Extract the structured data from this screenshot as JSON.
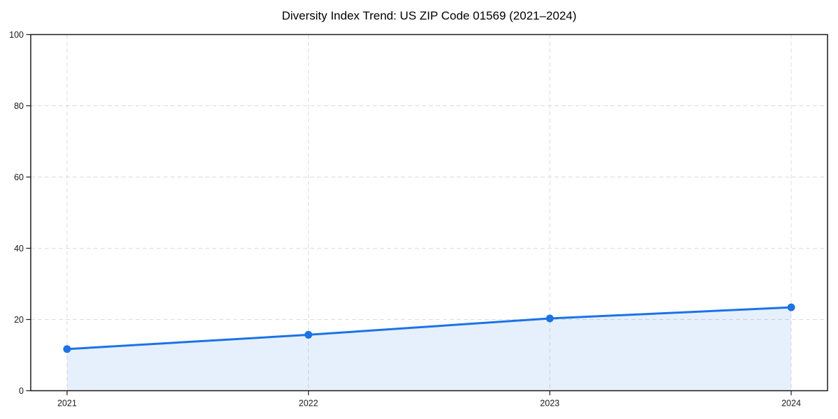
{
  "chart_data": {
    "type": "area",
    "title": "Diversity Index Trend: US ZIP Code 01569 (2021–2024)",
    "x": [
      "2021",
      "2022",
      "2023",
      "2024"
    ],
    "series": [
      {
        "name": "Diversity Index",
        "values": [
          11.7,
          15.7,
          20.3,
          23.4
        ]
      }
    ],
    "xlabel": "",
    "ylabel": "",
    "ylim": [
      0,
      100
    ],
    "yticks": [
      0,
      20,
      40,
      60,
      80,
      100
    ],
    "grid": true,
    "grid_style": "dashed",
    "marker": "circle",
    "colors": {
      "line": "#1a73e8",
      "fill": "#1a73e8",
      "fill_opacity": 0.11,
      "grid": "#dcdcdc",
      "axis": "#1a1a1a",
      "text": "#000000"
    }
  }
}
